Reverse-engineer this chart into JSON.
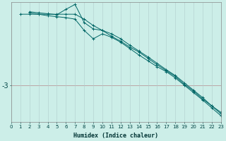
{
  "xlabel": "Humidex (Indice chaleur)",
  "background_color": "#cceee8",
  "grid_color": "#b0cccc",
  "line_color": "#006666",
  "marker_color": "#006666",
  "hline_color": "#cc6666",
  "ytick_value": -3,
  "ytick_label": "-3",
  "xlim": [
    0,
    23
  ],
  "ylim": [
    -3.75,
    -1.3
  ],
  "series": [
    {
      "x": [
        1,
        2,
        3,
        4,
        5,
        6,
        7,
        8,
        9,
        10,
        11,
        12,
        13,
        14,
        15,
        16,
        17,
        18,
        19,
        20,
        21,
        22,
        23
      ],
      "y": [
        -1.55,
        -1.55,
        -1.55,
        -1.55,
        -1.55,
        -1.55,
        -1.55,
        -1.65,
        -1.78,
        -1.88,
        -2.0,
        -2.1,
        -2.22,
        -2.32,
        -2.45,
        -2.58,
        -2.7,
        -2.82,
        -2.98,
        -3.12,
        -3.28,
        -3.42,
        -3.55
      ]
    },
    {
      "x": [
        2,
        3,
        4,
        5,
        6,
        7,
        8,
        9,
        10,
        11,
        12,
        13,
        14,
        15,
        16,
        17,
        18,
        19,
        20,
        21,
        22,
        23
      ],
      "y": [
        -1.5,
        -1.52,
        -1.54,
        -1.56,
        -1.45,
        -1.35,
        -1.72,
        -1.85,
        -1.88,
        -1.95,
        -2.05,
        -2.18,
        -2.3,
        -2.42,
        -2.55,
        -2.68,
        -2.8,
        -2.95,
        -3.1,
        -3.25,
        -3.42,
        -3.58
      ]
    },
    {
      "x": [
        2,
        3,
        4,
        5,
        6,
        7,
        8,
        9,
        10,
        11,
        12,
        13,
        14,
        15,
        16,
        17,
        18,
        19,
        20,
        21,
        22,
        23
      ],
      "y": [
        -1.52,
        -1.55,
        -1.58,
        -1.6,
        -1.62,
        -1.65,
        -1.88,
        -2.05,
        -1.95,
        -2.02,
        -2.12,
        -2.25,
        -2.38,
        -2.5,
        -2.62,
        -2.72,
        -2.85,
        -3.0,
        -3.15,
        -3.3,
        -3.46,
        -3.62
      ]
    }
  ],
  "xlabel_fontsize": 6,
  "tick_fontsize": 5,
  "ytick_fontsize": 7
}
